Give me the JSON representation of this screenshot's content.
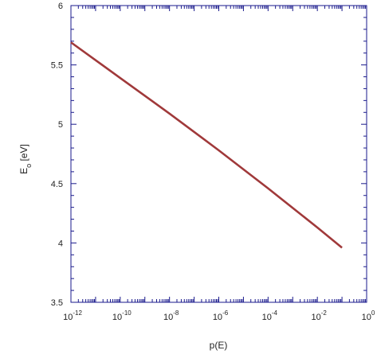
{
  "chart_data": {
    "type": "line",
    "title": "",
    "xlabel": "p(E)",
    "ylabel": "E",
    "ylabel_subscript": "o",
    "ylabel_unit": "[eV]",
    "x_scale": "log",
    "xlim": [
      1e-12,
      1
    ],
    "ylim": [
      3.5,
      6
    ],
    "x_ticks": [
      {
        "value": 1e-12,
        "base": "10",
        "exp": "-12"
      },
      {
        "value": 1e-10,
        "base": "10",
        "exp": "-10"
      },
      {
        "value": 1e-08,
        "base": "10",
        "exp": "-8"
      },
      {
        "value": 1e-06,
        "base": "10",
        "exp": "-6"
      },
      {
        "value": 0.0001,
        "base": "10",
        "exp": "-4"
      },
      {
        "value": 0.01,
        "base": "10",
        "exp": "-2"
      },
      {
        "value": 1,
        "base": "10",
        "exp": "0"
      }
    ],
    "y_ticks": [
      {
        "value": 3.5,
        "label": "3.5"
      },
      {
        "value": 4,
        "label": "4"
      },
      {
        "value": 4.5,
        "label": "4.5"
      },
      {
        "value": 5,
        "label": "5"
      },
      {
        "value": 5.5,
        "label": "5.5"
      },
      {
        "value": 6,
        "label": "6"
      }
    ],
    "grid": false,
    "series": [
      {
        "color": "#a0393a",
        "x": [
          1e-12,
          1e-10,
          1e-08,
          1e-06,
          0.0001,
          0.01,
          0.1
        ],
        "y": [
          5.69,
          5.39,
          5.09,
          4.78,
          4.46,
          4.13,
          3.96
        ]
      }
    ]
  },
  "colors": {
    "frame": "#1a1a8c",
    "text": "#222222"
  }
}
